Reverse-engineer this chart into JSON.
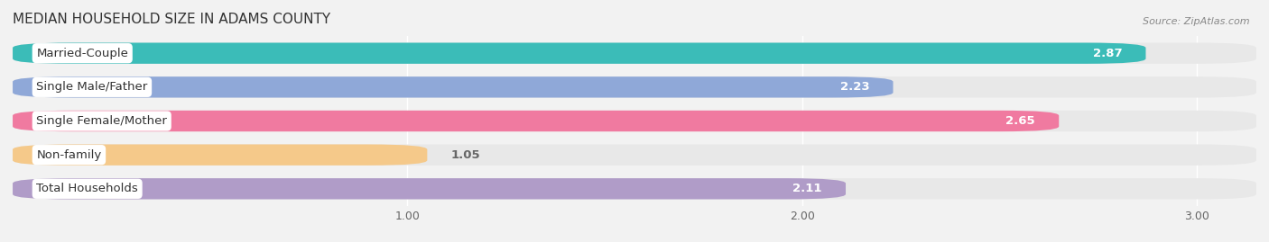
{
  "title": "MEDIAN HOUSEHOLD SIZE IN ADAMS COUNTY",
  "source": "Source: ZipAtlas.com",
  "categories": [
    "Married-Couple",
    "Single Male/Father",
    "Single Female/Mother",
    "Non-family",
    "Total Households"
  ],
  "values": [
    2.87,
    2.23,
    2.65,
    1.05,
    2.11
  ],
  "bar_colors": [
    "#3bbcb8",
    "#8fa8d8",
    "#f07aa0",
    "#f5c98a",
    "#b09cc8"
  ],
  "value_colors": [
    "white",
    "white",
    "white",
    "#888888",
    "white"
  ],
  "xlim_min": 0.0,
  "xlim_max": 3.15,
  "xticks": [
    1.0,
    2.0,
    3.0
  ],
  "label_fontsize": 9.5,
  "value_fontsize": 9.5,
  "title_fontsize": 11,
  "bg_color": "#f2f2f2",
  "bar_bg_color": "#e8e8e8",
  "bar_gap": 0.18,
  "bar_height": 0.62
}
